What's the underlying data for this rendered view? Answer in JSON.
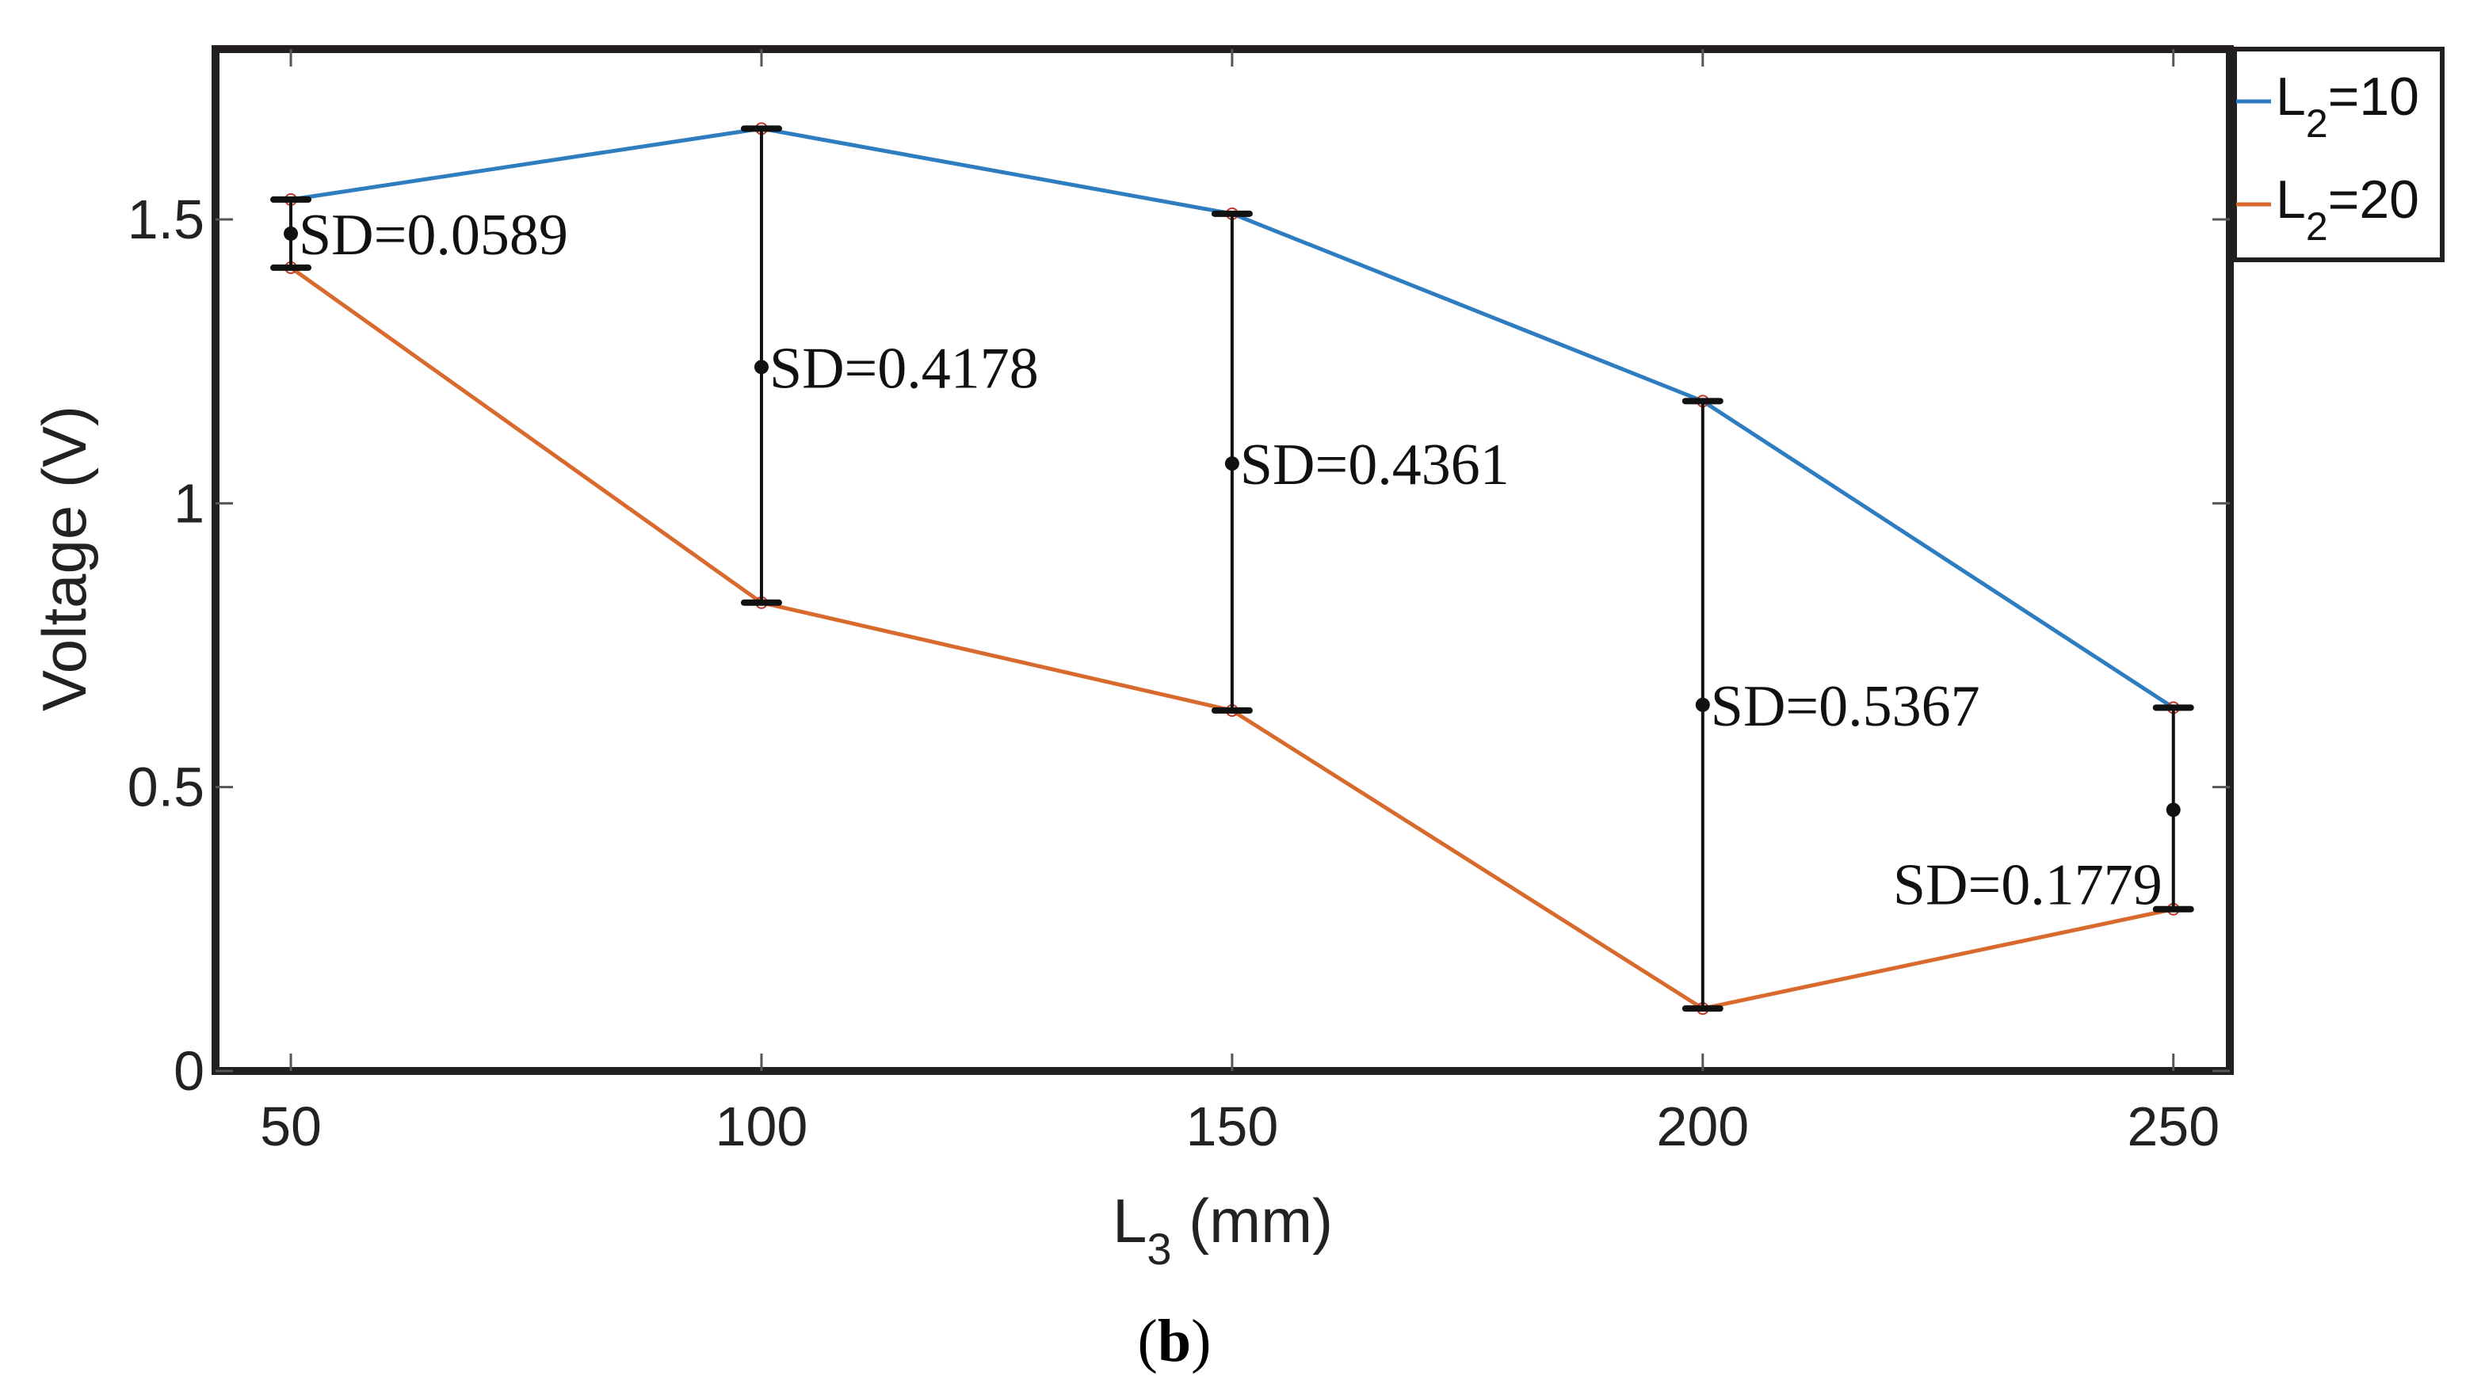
{
  "chart_data": {
    "type": "line",
    "xlabel_main": "L",
    "xlabel_sub": "3",
    "xlabel_unit": " (mm)",
    "ylabel": "Voltage (V)",
    "xlim": [
      42,
      256
    ],
    "ylim": [
      0,
      1.8
    ],
    "x_ticks": [
      50,
      100,
      150,
      200,
      250
    ],
    "y_ticks": [
      0,
      0.5,
      1,
      1.5
    ],
    "y_tick_labels": [
      "0",
      "0.5",
      "1",
      "1.5"
    ],
    "x": [
      50,
      100,
      150,
      200,
      250
    ],
    "series": [
      {
        "name_main": "L",
        "name_sub": "2",
        "name_value": "=10",
        "color": "#2E7DC0",
        "values": [
          1.535,
          1.66,
          1.51,
          1.18,
          0.64
        ]
      },
      {
        "name_main": "L",
        "name_sub": "2",
        "name_value": "=20",
        "color": "#D86A2E",
        "values": [
          1.415,
          0.825,
          0.635,
          0.11,
          0.285
        ]
      }
    ],
    "annotations": [
      {
        "x": 50,
        "mean": 1.475,
        "label": "SD=0.0589"
      },
      {
        "x": 100,
        "mean": 1.24,
        "label": "SD=0.4178"
      },
      {
        "x": 150,
        "mean": 1.07,
        "label": "SD=0.4361"
      },
      {
        "x": 200,
        "mean": 0.645,
        "label": "SD=0.5367"
      },
      {
        "x": 250,
        "mean": 0.46,
        "label": "SD=0.1779"
      }
    ],
    "legend_position": "top-right"
  },
  "caption": {
    "open": "(",
    "letter": "b",
    "close": ")"
  }
}
